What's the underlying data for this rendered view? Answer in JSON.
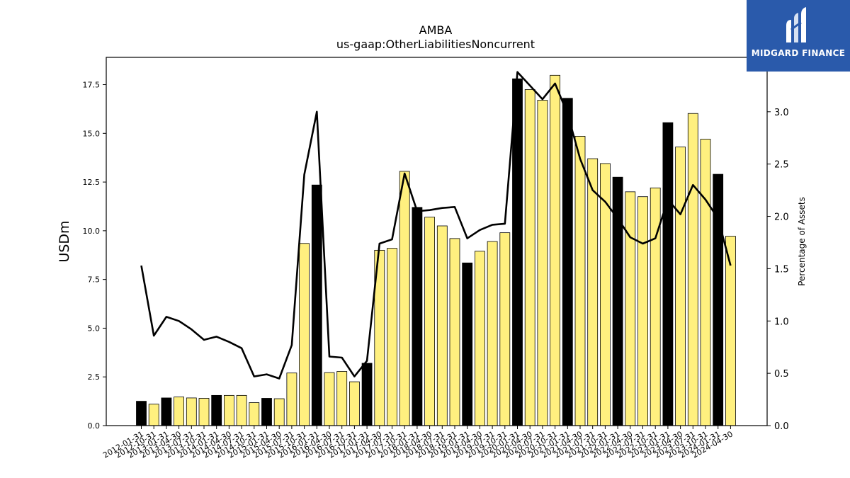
{
  "chart_data": {
    "type": "bar",
    "title": "AMBA",
    "subtitle": "us-gaap:OtherLiabilitiesNoncurrent",
    "ylabel": "USDm",
    "y2label": "Percentage of Assets",
    "ylim": [
      0,
      18.9
    ],
    "y2lim": [
      0,
      3.52
    ],
    "yticks": [
      "0.0",
      "2.5",
      "5.0",
      "7.5",
      "10.0",
      "12.5",
      "15.0",
      "17.5"
    ],
    "y2ticks": [
      "0.0",
      "0.5",
      "1.0",
      "1.5",
      "2.0",
      "2.5",
      "3.0"
    ],
    "grid": false,
    "categories": [
      "2012-01-31",
      "2012-10-31",
      "2013-01-31",
      "2013-04-30",
      "2013-07-31",
      "2013-10-31",
      "2014-01-31",
      "2014-04-30",
      "2014-07-31",
      "2014-10-31",
      "2015-01-31",
      "2015-04-30",
      "2015-07-31",
      "2015-10-31",
      "2016-01-31",
      "2016-04-30",
      "2016-07-31",
      "2016-10-31",
      "2017-01-31",
      "2017-04-30",
      "2017-07-31",
      "2017-10-31",
      "2018-01-31",
      "2018-04-30",
      "2018-07-31",
      "2018-10-31",
      "2019-01-31",
      "2019-04-30",
      "2019-07-31",
      "2019-10-31",
      "2020-01-31",
      "2020-04-30",
      "2020-07-31",
      "2020-10-31",
      "2021-01-31",
      "2021-04-30",
      "2021-07-31",
      "2021-10-31",
      "2022-01-31",
      "2022-04-30",
      "2022-07-31",
      "2022-10-31",
      "2023-01-31",
      "2023-04-30",
      "2023-07-31",
      "2023-10-31",
      "2024-01-31",
      "2024-04-30"
    ],
    "xtick_labels": [
      "2012-01-31",
      "2012-10-31",
      "2013-01-31",
      "2013-04-30",
      "2013-07-31",
      "2013-10-31",
      "2014-01-31",
      "2014-04-30",
      "2014-07-31",
      "2014-10-31",
      "2015-01-31",
      "2015-04-30",
      "2015-07-31",
      "2015-10-31",
      "2016-01-31",
      "2016-04-30",
      "2016-07-31",
      "2016-10-31",
      "2017-01-31",
      "2017-04-30",
      "2017-07-31",
      "2017-10-31",
      "2018-01-31",
      "2018-04-30",
      "2018-07-31",
      "2018-10-31",
      "2019-01-31",
      "2019-04-30",
      "2019-07-31",
      "2019-10-31",
      "2020-01-31",
      "2020-04-30",
      "2020-07-31",
      "2020-10-31",
      "2021-01-31",
      "2021-04-30",
      "2021-07-31",
      "2021-10-31",
      "2022-01-31",
      "2022-04-30",
      "2022-07-31",
      "2022-10-31",
      "2023-01-31",
      "2023-04-30",
      "2023-07-31",
      "2023-10-31",
      "2024-01-31",
      "2024-04-30"
    ],
    "series": [
      {
        "type": "bar",
        "axis": "left",
        "values": [
          1.25,
          1.1,
          1.42,
          1.47,
          1.42,
          1.4,
          1.55,
          1.55,
          1.55,
          1.18,
          1.4,
          1.38,
          2.7,
          9.35,
          12.35,
          2.72,
          2.78,
          2.25,
          3.2,
          9.0,
          9.1,
          13.05,
          11.2,
          10.7,
          10.25,
          9.6,
          8.35,
          8.95,
          9.45,
          9.9,
          17.8,
          17.25,
          16.7,
          17.98,
          16.8,
          14.85,
          13.7,
          13.45,
          12.75,
          12.0,
          11.75,
          12.2,
          15.55,
          14.3,
          16.02,
          14.7,
          12.9,
          9.72
        ],
        "colors": [
          "#000000",
          "#fff07f",
          "#000000",
          "#fff07f",
          "#fff07f",
          "#fff07f",
          "#000000",
          "#fff07f",
          "#fff07f",
          "#fff07f",
          "#000000",
          "#fff07f",
          "#fff07f",
          "#fff07f",
          "#000000",
          "#fff07f",
          "#fff07f",
          "#fff07f",
          "#000000",
          "#fff07f",
          "#fff07f",
          "#fff07f",
          "#000000",
          "#fff07f",
          "#fff07f",
          "#fff07f",
          "#000000",
          "#fff07f",
          "#fff07f",
          "#fff07f",
          "#000000",
          "#fff07f",
          "#fff07f",
          "#fff07f",
          "#000000",
          "#fff07f",
          "#fff07f",
          "#fff07f",
          "#000000",
          "#fff07f",
          "#fff07f",
          "#fff07f",
          "#000000",
          "#fff07f",
          "#fff07f",
          "#fff07f",
          "#000000",
          "#fff07f"
        ]
      },
      {
        "type": "line",
        "axis": "right",
        "color": "#000000",
        "values": [
          1.53,
          0.86,
          1.04,
          1.0,
          0.92,
          0.82,
          0.85,
          0.8,
          0.74,
          0.47,
          0.49,
          0.45,
          0.77,
          2.4,
          3.0,
          0.66,
          0.65,
          0.47,
          0.62,
          1.74,
          1.78,
          2.41,
          2.05,
          2.06,
          2.08,
          2.09,
          1.79,
          1.87,
          1.92,
          1.93,
          3.38,
          3.25,
          3.12,
          3.27,
          2.98,
          2.55,
          2.25,
          2.14,
          1.98,
          1.8,
          1.74,
          1.79,
          2.16,
          2.02,
          2.3,
          2.16,
          1.98,
          1.53
        ]
      }
    ]
  },
  "logo": {
    "text": "MIDGARD FINANCE",
    "color": "#2a5aab"
  }
}
